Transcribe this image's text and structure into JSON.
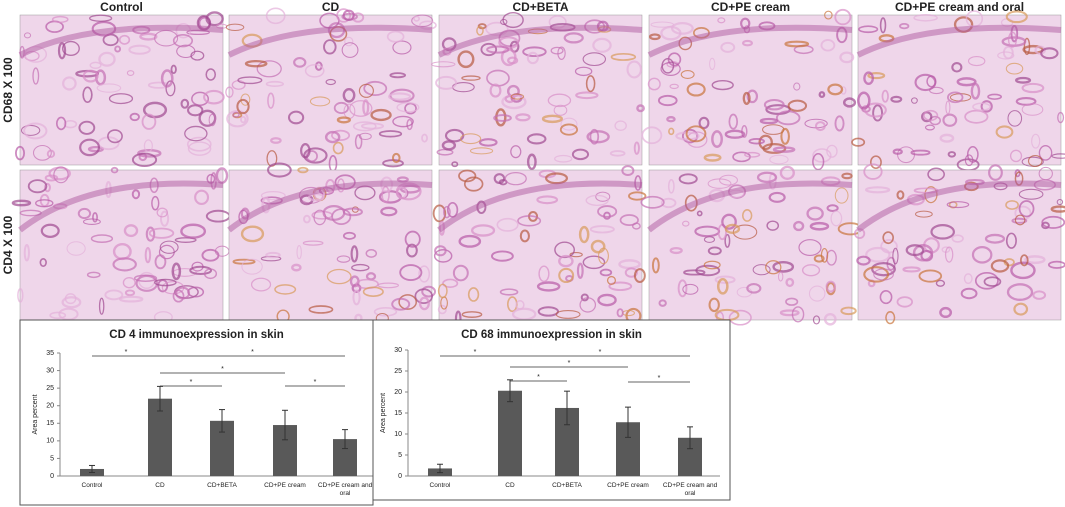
{
  "panels": {
    "columns": [
      "Control",
      "CD",
      "CD+BETA",
      "CD+PE cream",
      "CD+PE cream and oral"
    ],
    "rows": [
      "CD68 X 100",
      "CD4 X 100"
    ]
  },
  "chart_data": [
    {
      "type": "bar",
      "title": "CD 4 immunoexpression in skin",
      "y_label": "Area percent",
      "categories": [
        "Control",
        "CD",
        "CD+BETA",
        "CD+PE cream",
        "CD+PE cream and oral"
      ],
      "values": [
        2,
        22,
        15.7,
        14.5,
        10.5
      ],
      "errors": [
        1,
        3.5,
        3.2,
        4.2,
        2.7
      ],
      "color": "#595959",
      "ylim": [
        0,
        35
      ],
      "yticks": [
        0,
        5,
        10,
        15,
        20,
        25,
        30,
        35
      ],
      "annotations": [
        {
          "text": "*",
          "between": [
            "Control",
            "CD"
          ]
        },
        {
          "text": "*",
          "between": [
            "CD",
            "CD+PE cream and oral"
          ]
        },
        {
          "text": "*",
          "between": [
            "CD",
            "CD+PE cream"
          ]
        },
        {
          "text": "*",
          "between": [
            "CD",
            "CD+BETA"
          ]
        },
        {
          "text": "*",
          "between": [
            "CD+PE cream",
            "CD+PE cream and oral"
          ]
        }
      ]
    },
    {
      "type": "bar",
      "title": "CD 68 immunoexpression in skin",
      "y_label": "Area percent",
      "categories": [
        "Control",
        "CD",
        "CD+BETA",
        "CD+PE cream",
        "CD+PE cream and oral"
      ],
      "values": [
        1.8,
        20.3,
        16.2,
        12.8,
        9.1
      ],
      "errors": [
        1,
        2.6,
        4,
        3.6,
        2.6
      ],
      "color": "#595959",
      "ylim": [
        0,
        30
      ],
      "yticks": [
        0,
        5,
        10,
        15,
        20,
        25,
        30
      ],
      "annotations": [
        {
          "text": "*",
          "between": [
            "Control",
            "CD"
          ]
        },
        {
          "text": "*",
          "between": [
            "CD",
            "CD+PE cream and oral"
          ]
        },
        {
          "text": "*",
          "between": [
            "CD",
            "CD+PE cream"
          ]
        },
        {
          "text": "*",
          "between": [
            "CD",
            "CD+BETA"
          ]
        },
        {
          "text": "*",
          "between": [
            "CD+PE cream",
            "CD+PE cream and oral"
          ]
        }
      ]
    }
  ]
}
